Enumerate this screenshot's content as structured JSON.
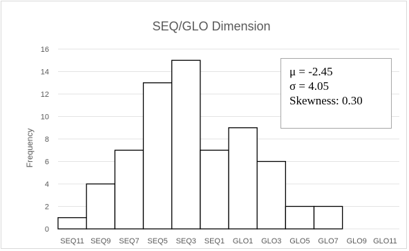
{
  "chart_data": {
    "type": "bar",
    "title": "SEQ/GLO Dimension",
    "xlabel": "",
    "ylabel": "Frequency",
    "categories": [
      "SEQ11",
      "SEQ9",
      "SEQ7",
      "SEQ5",
      "SEQ3",
      "SEQ1",
      "GLO1",
      "GLO3",
      "GLO5",
      "GLO7",
      "GLO9",
      "GLO11"
    ],
    "values": [
      1,
      4,
      7,
      13,
      15,
      7,
      9,
      6,
      2,
      2,
      0,
      0
    ],
    "ylim": [
      0,
      16
    ],
    "yticks": [
      0,
      2,
      4,
      6,
      8,
      10,
      12,
      14,
      16
    ],
    "grid": true,
    "annotation": [
      "μ = -2.45",
      "σ = 4.05",
      "Skewness: 0.30"
    ]
  }
}
